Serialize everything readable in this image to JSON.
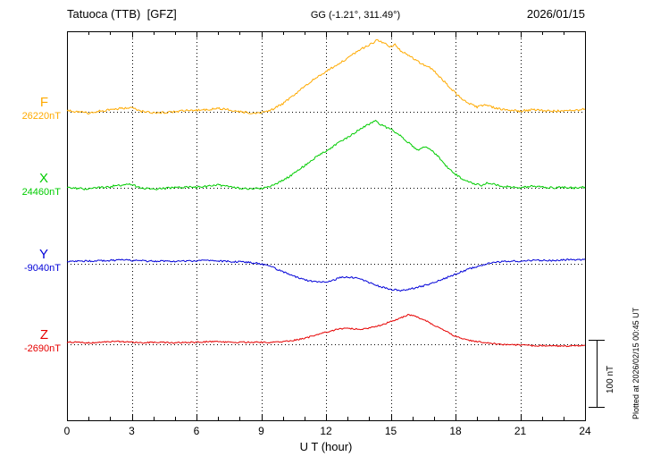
{
  "header": {
    "station": "Tatuoca (TTB)  [GFZ]",
    "coords": "GG (-1.21°, 311.49°)",
    "date": "2026/01/15"
  },
  "axis": {
    "xlabel": "U T (hour)",
    "xmin": 0,
    "xmax": 24,
    "xticks": [
      0,
      3,
      6,
      9,
      12,
      15,
      18,
      21,
      24
    ],
    "minor_tick_hours": 1
  },
  "scalebar": {
    "label": "100 nT",
    "nT": 100
  },
  "watermark": "Plotted at 2026/02/15 00:45 UT",
  "chart_data": {
    "type": "line",
    "title": "Tatuoca (TTB) [GFZ] magnetogram, 2026/01/15",
    "xlabel": "U T (hour)",
    "x_unit": "hour UT",
    "x_range": [
      0,
      24
    ],
    "y_unit": "nT offset from each component baseline",
    "scale_bar_nT": 100,
    "grid": "dotted vertical lines every 3 h; dotted horizontal baseline per trace",
    "series": [
      {
        "name": "F",
        "color": "#FFAA00",
        "baseline_label": "26220nT",
        "baseline_nT": 26220,
        "noise_nT": 1.6,
        "points": [
          [
            0,
            2
          ],
          [
            0.5,
            0
          ],
          [
            1,
            -2
          ],
          [
            1.5,
            1
          ],
          [
            2,
            3
          ],
          [
            2.5,
            5
          ],
          [
            3,
            6
          ],
          [
            3.4,
            1
          ],
          [
            4,
            -2
          ],
          [
            4.5,
            -1
          ],
          [
            5,
            0
          ],
          [
            5.5,
            2
          ],
          [
            6,
            2
          ],
          [
            6.5,
            3
          ],
          [
            7,
            5
          ],
          [
            7.5,
            3
          ],
          [
            8,
            0
          ],
          [
            8.5,
            -2
          ],
          [
            9,
            -1
          ],
          [
            9.5,
            3
          ],
          [
            10,
            12
          ],
          [
            10.5,
            24
          ],
          [
            11,
            38
          ],
          [
            11.5,
            50
          ],
          [
            12,
            60
          ],
          [
            12.5,
            70
          ],
          [
            13,
            80
          ],
          [
            13.5,
            91
          ],
          [
            14,
            100
          ],
          [
            14.4,
            107
          ],
          [
            14.7,
            102
          ],
          [
            15,
            97
          ],
          [
            15.2,
            100
          ],
          [
            15.5,
            90
          ],
          [
            16,
            81
          ],
          [
            16.4,
            72
          ],
          [
            16.8,
            66
          ],
          [
            17.1,
            58
          ],
          [
            17.4,
            48
          ],
          [
            17.8,
            34
          ],
          [
            18.2,
            22
          ],
          [
            18.6,
            13
          ],
          [
            19,
            7
          ],
          [
            19.4,
            11
          ],
          [
            19.8,
            6
          ],
          [
            20.2,
            3
          ],
          [
            20.6,
            2
          ],
          [
            21,
            1
          ],
          [
            21.5,
            3
          ],
          [
            22,
            2
          ],
          [
            22.5,
            1
          ],
          [
            23,
            2
          ],
          [
            23.5,
            2
          ],
          [
            24,
            4
          ]
        ]
      },
      {
        "name": "X",
        "color": "#00CC00",
        "baseline_label": "24460nT",
        "baseline_nT": 24460,
        "noise_nT": 1.6,
        "points": [
          [
            0,
            1
          ],
          [
            0.5,
            -1
          ],
          [
            1,
            -2
          ],
          [
            1.5,
            0
          ],
          [
            2,
            2
          ],
          [
            2.5,
            4
          ],
          [
            3,
            5
          ],
          [
            3.4,
            0
          ],
          [
            4,
            -2
          ],
          [
            4.5,
            -1
          ],
          [
            5,
            0
          ],
          [
            5.5,
            1
          ],
          [
            6,
            1
          ],
          [
            6.5,
            2
          ],
          [
            7,
            4
          ],
          [
            7.5,
            2
          ],
          [
            8,
            -1
          ],
          [
            8.5,
            -2
          ],
          [
            9,
            -1
          ],
          [
            9.5,
            3
          ],
          [
            10,
            11
          ],
          [
            10.5,
            21
          ],
          [
            11,
            33
          ],
          [
            11.5,
            45
          ],
          [
            12,
            55
          ],
          [
            12.5,
            65
          ],
          [
            13,
            75
          ],
          [
            13.5,
            86
          ],
          [
            14,
            95
          ],
          [
            14.3,
            100
          ],
          [
            14.6,
            93
          ],
          [
            15,
            87
          ],
          [
            15.3,
            81
          ],
          [
            15.7,
            71
          ],
          [
            16,
            62
          ],
          [
            16.3,
            56
          ],
          [
            16.6,
            61
          ],
          [
            17,
            53
          ],
          [
            17.3,
            43
          ],
          [
            17.6,
            31
          ],
          [
            18,
            20
          ],
          [
            18.4,
            12
          ],
          [
            18.8,
            6
          ],
          [
            19.2,
            4
          ],
          [
            19.5,
            8
          ],
          [
            19.9,
            4
          ],
          [
            20.3,
            2
          ],
          [
            21,
            0
          ],
          [
            21.5,
            2
          ],
          [
            22,
            1
          ],
          [
            22.5,
            0
          ],
          [
            23,
            1
          ],
          [
            23.5,
            0
          ],
          [
            24,
            1
          ]
        ]
      },
      {
        "name": "Y",
        "color": "#0000D8",
        "baseline_label": "-9040nT",
        "baseline_nT": -9040,
        "noise_nT": 1.3,
        "points": [
          [
            0,
            4
          ],
          [
            1,
            4
          ],
          [
            2,
            5
          ],
          [
            2.5,
            6
          ],
          [
            3,
            5
          ],
          [
            4,
            4
          ],
          [
            5,
            4
          ],
          [
            6,
            4
          ],
          [
            6.5,
            5
          ],
          [
            7,
            4
          ],
          [
            8,
            3
          ],
          [
            8.5,
            2
          ],
          [
            9,
            0
          ],
          [
            9.5,
            -5
          ],
          [
            10,
            -12
          ],
          [
            10.5,
            -18
          ],
          [
            11,
            -24
          ],
          [
            11.5,
            -27
          ],
          [
            12,
            -28
          ],
          [
            12.3,
            -25
          ],
          [
            12.6,
            -21
          ],
          [
            13,
            -20
          ],
          [
            13.5,
            -21
          ],
          [
            14,
            -28
          ],
          [
            14.5,
            -34
          ],
          [
            15,
            -38
          ],
          [
            15.5,
            -40
          ],
          [
            16,
            -37
          ],
          [
            16.5,
            -33
          ],
          [
            17,
            -28
          ],
          [
            17.5,
            -22
          ],
          [
            18,
            -15
          ],
          [
            18.5,
            -9
          ],
          [
            19,
            -4
          ],
          [
            19.5,
            0
          ],
          [
            20,
            3
          ],
          [
            20.5,
            4
          ],
          [
            21,
            4
          ],
          [
            21.5,
            5
          ],
          [
            22,
            5
          ],
          [
            22.5,
            5
          ],
          [
            23,
            6
          ],
          [
            23.5,
            6
          ],
          [
            24,
            6
          ]
        ]
      },
      {
        "name": "Z",
        "color": "#E60000",
        "baseline_label": "-2690nT",
        "baseline_nT": -2690,
        "noise_nT": 1.1,
        "points": [
          [
            0,
            3
          ],
          [
            0.5,
            3
          ],
          [
            1,
            2
          ],
          [
            1.5,
            3
          ],
          [
            2,
            4
          ],
          [
            2.5,
            4
          ],
          [
            3,
            3
          ],
          [
            3.5,
            2
          ],
          [
            4,
            3
          ],
          [
            4.5,
            3
          ],
          [
            5,
            2
          ],
          [
            5.5,
            3
          ],
          [
            6,
            3
          ],
          [
            6.5,
            4
          ],
          [
            7,
            4
          ],
          [
            7.5,
            3
          ],
          [
            8,
            3
          ],
          [
            8.5,
            3
          ],
          [
            9,
            3
          ],
          [
            9.5,
            3
          ],
          [
            10,
            4
          ],
          [
            10.5,
            6
          ],
          [
            11,
            9
          ],
          [
            11.5,
            13
          ],
          [
            12,
            18
          ],
          [
            12.5,
            22
          ],
          [
            13,
            24
          ],
          [
            13.3,
            23
          ],
          [
            13.6,
            22
          ],
          [
            14,
            24
          ],
          [
            14.5,
            28
          ],
          [
            15,
            34
          ],
          [
            15.5,
            40
          ],
          [
            15.8,
            44
          ],
          [
            16.1,
            42
          ],
          [
            16.5,
            37
          ],
          [
            17,
            29
          ],
          [
            17.5,
            20
          ],
          [
            18,
            12
          ],
          [
            18.5,
            7
          ],
          [
            19,
            4
          ],
          [
            19.5,
            2
          ],
          [
            20,
            0
          ],
          [
            20.5,
            -1
          ],
          [
            21,
            -1
          ],
          [
            21.5,
            -2
          ],
          [
            22,
            -2
          ],
          [
            22.5,
            -2
          ],
          [
            23,
            -3
          ],
          [
            23.5,
            -2
          ],
          [
            24,
            -2
          ]
        ]
      }
    ]
  }
}
